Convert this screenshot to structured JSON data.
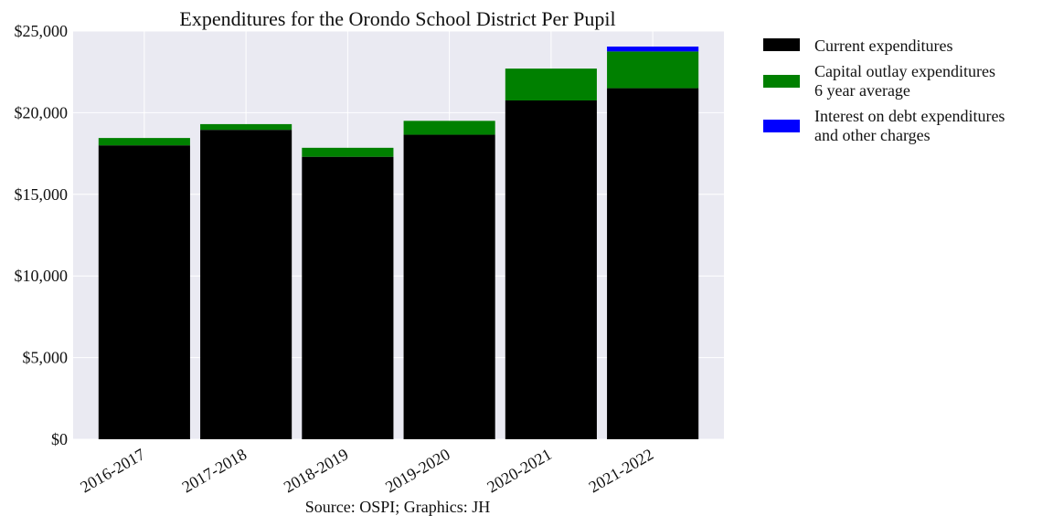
{
  "chart_data": {
    "type": "bar",
    "stacked": true,
    "title": "Expenditures for the Orondo School District Per Pupil",
    "xlabel": "Source: OSPI; Graphics: JH",
    "ylabel": "",
    "categories": [
      "2016-2017",
      "2017-2018",
      "2018-2019",
      "2019-2020",
      "2020-2021",
      "2021-2022"
    ],
    "ylim": [
      0,
      25000
    ],
    "yticks": [
      0,
      5000,
      10000,
      15000,
      20000,
      25000
    ],
    "ytick_labels": [
      "$0",
      "$5,000",
      "$10,000",
      "$15,000",
      "$20,000",
      "$25,000"
    ],
    "grid": true,
    "legend_position": "right",
    "series": [
      {
        "name": "Current expenditures",
        "color": "#000000",
        "values": [
          18000,
          18950,
          17300,
          18650,
          20750,
          21500
        ]
      },
      {
        "name": "Capital outlay expenditures\n6 year average",
        "color": "#008000",
        "values": [
          450,
          350,
          550,
          850,
          1950,
          2250
        ]
      },
      {
        "name": "Interest on debt expenditures\nand other charges",
        "color": "#0000ff",
        "values": [
          0,
          0,
          0,
          0,
          0,
          300
        ]
      }
    ]
  }
}
